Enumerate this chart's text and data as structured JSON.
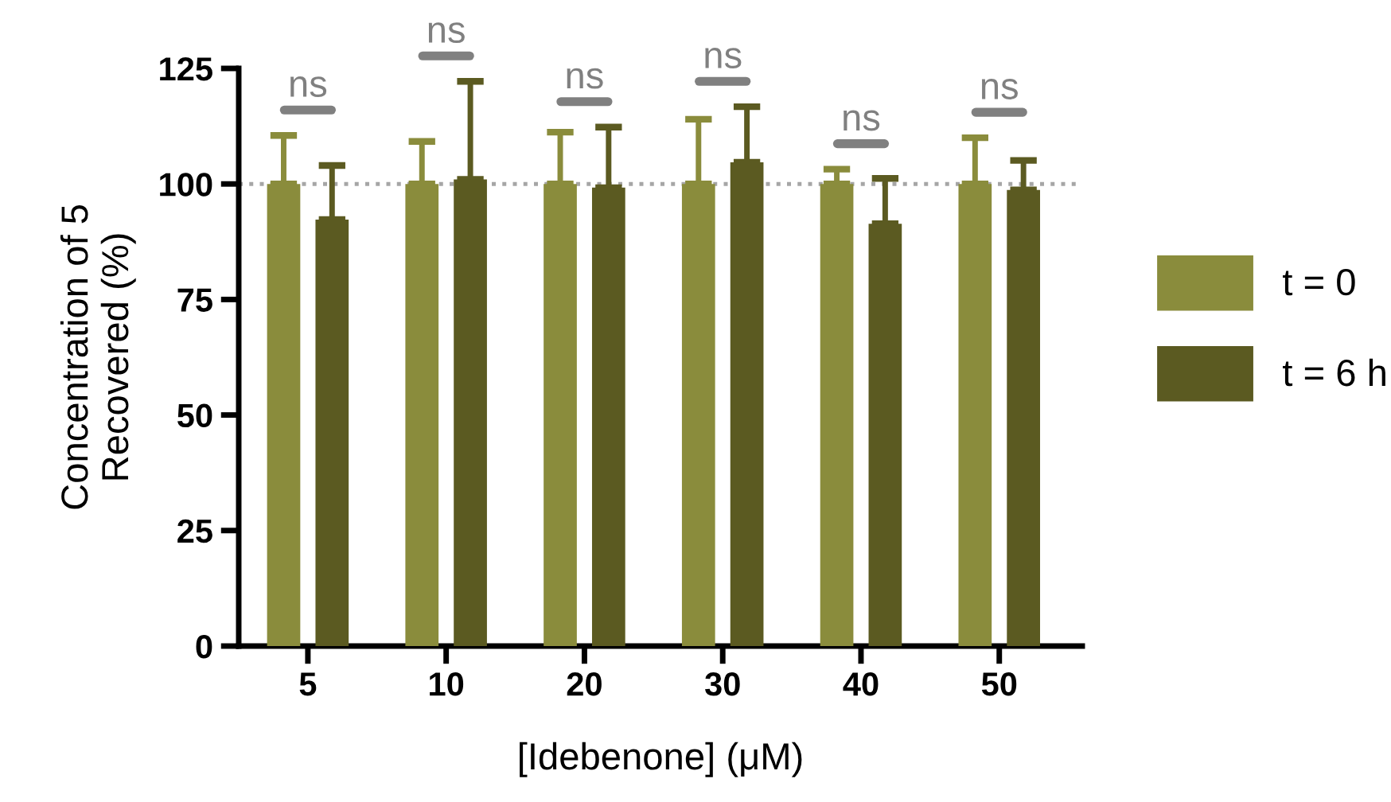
{
  "chart_data": {
    "type": "bar",
    "xlabel": "[Idebenone] (μM)",
    "ylabel": "Concentration of 5\nRecovered (%)",
    "categories": [
      "5",
      "10",
      "20",
      "30",
      "40",
      "50"
    ],
    "series": [
      {
        "name": "t = 0",
        "color": "#8a8c3c",
        "values": [
          100,
          100,
          100,
          100,
          100,
          100
        ],
        "errors": [
          10.5,
          9.2,
          11.2,
          14,
          3.2,
          10
        ]
      },
      {
        "name": "t = 6 h",
        "color": "#5b5a21",
        "values": [
          92.3,
          101,
          99.2,
          104.7,
          91.4,
          98.7
        ],
        "errors": [
          11.7,
          21.2,
          13.1,
          12,
          9.8,
          6.4
        ]
      }
    ],
    "ylim": [
      0,
      125
    ],
    "yticks": [
      0,
      25,
      50,
      75,
      100,
      125
    ],
    "grid": false,
    "legend": "right",
    "ref_lines": [
      {
        "axis": "y",
        "value": 100,
        "color": "#a6a6a6",
        "line_style": "dotted"
      }
    ],
    "annotations": [
      "ns",
      "ns",
      "ns",
      "ns",
      "ns",
      "ns"
    ]
  }
}
